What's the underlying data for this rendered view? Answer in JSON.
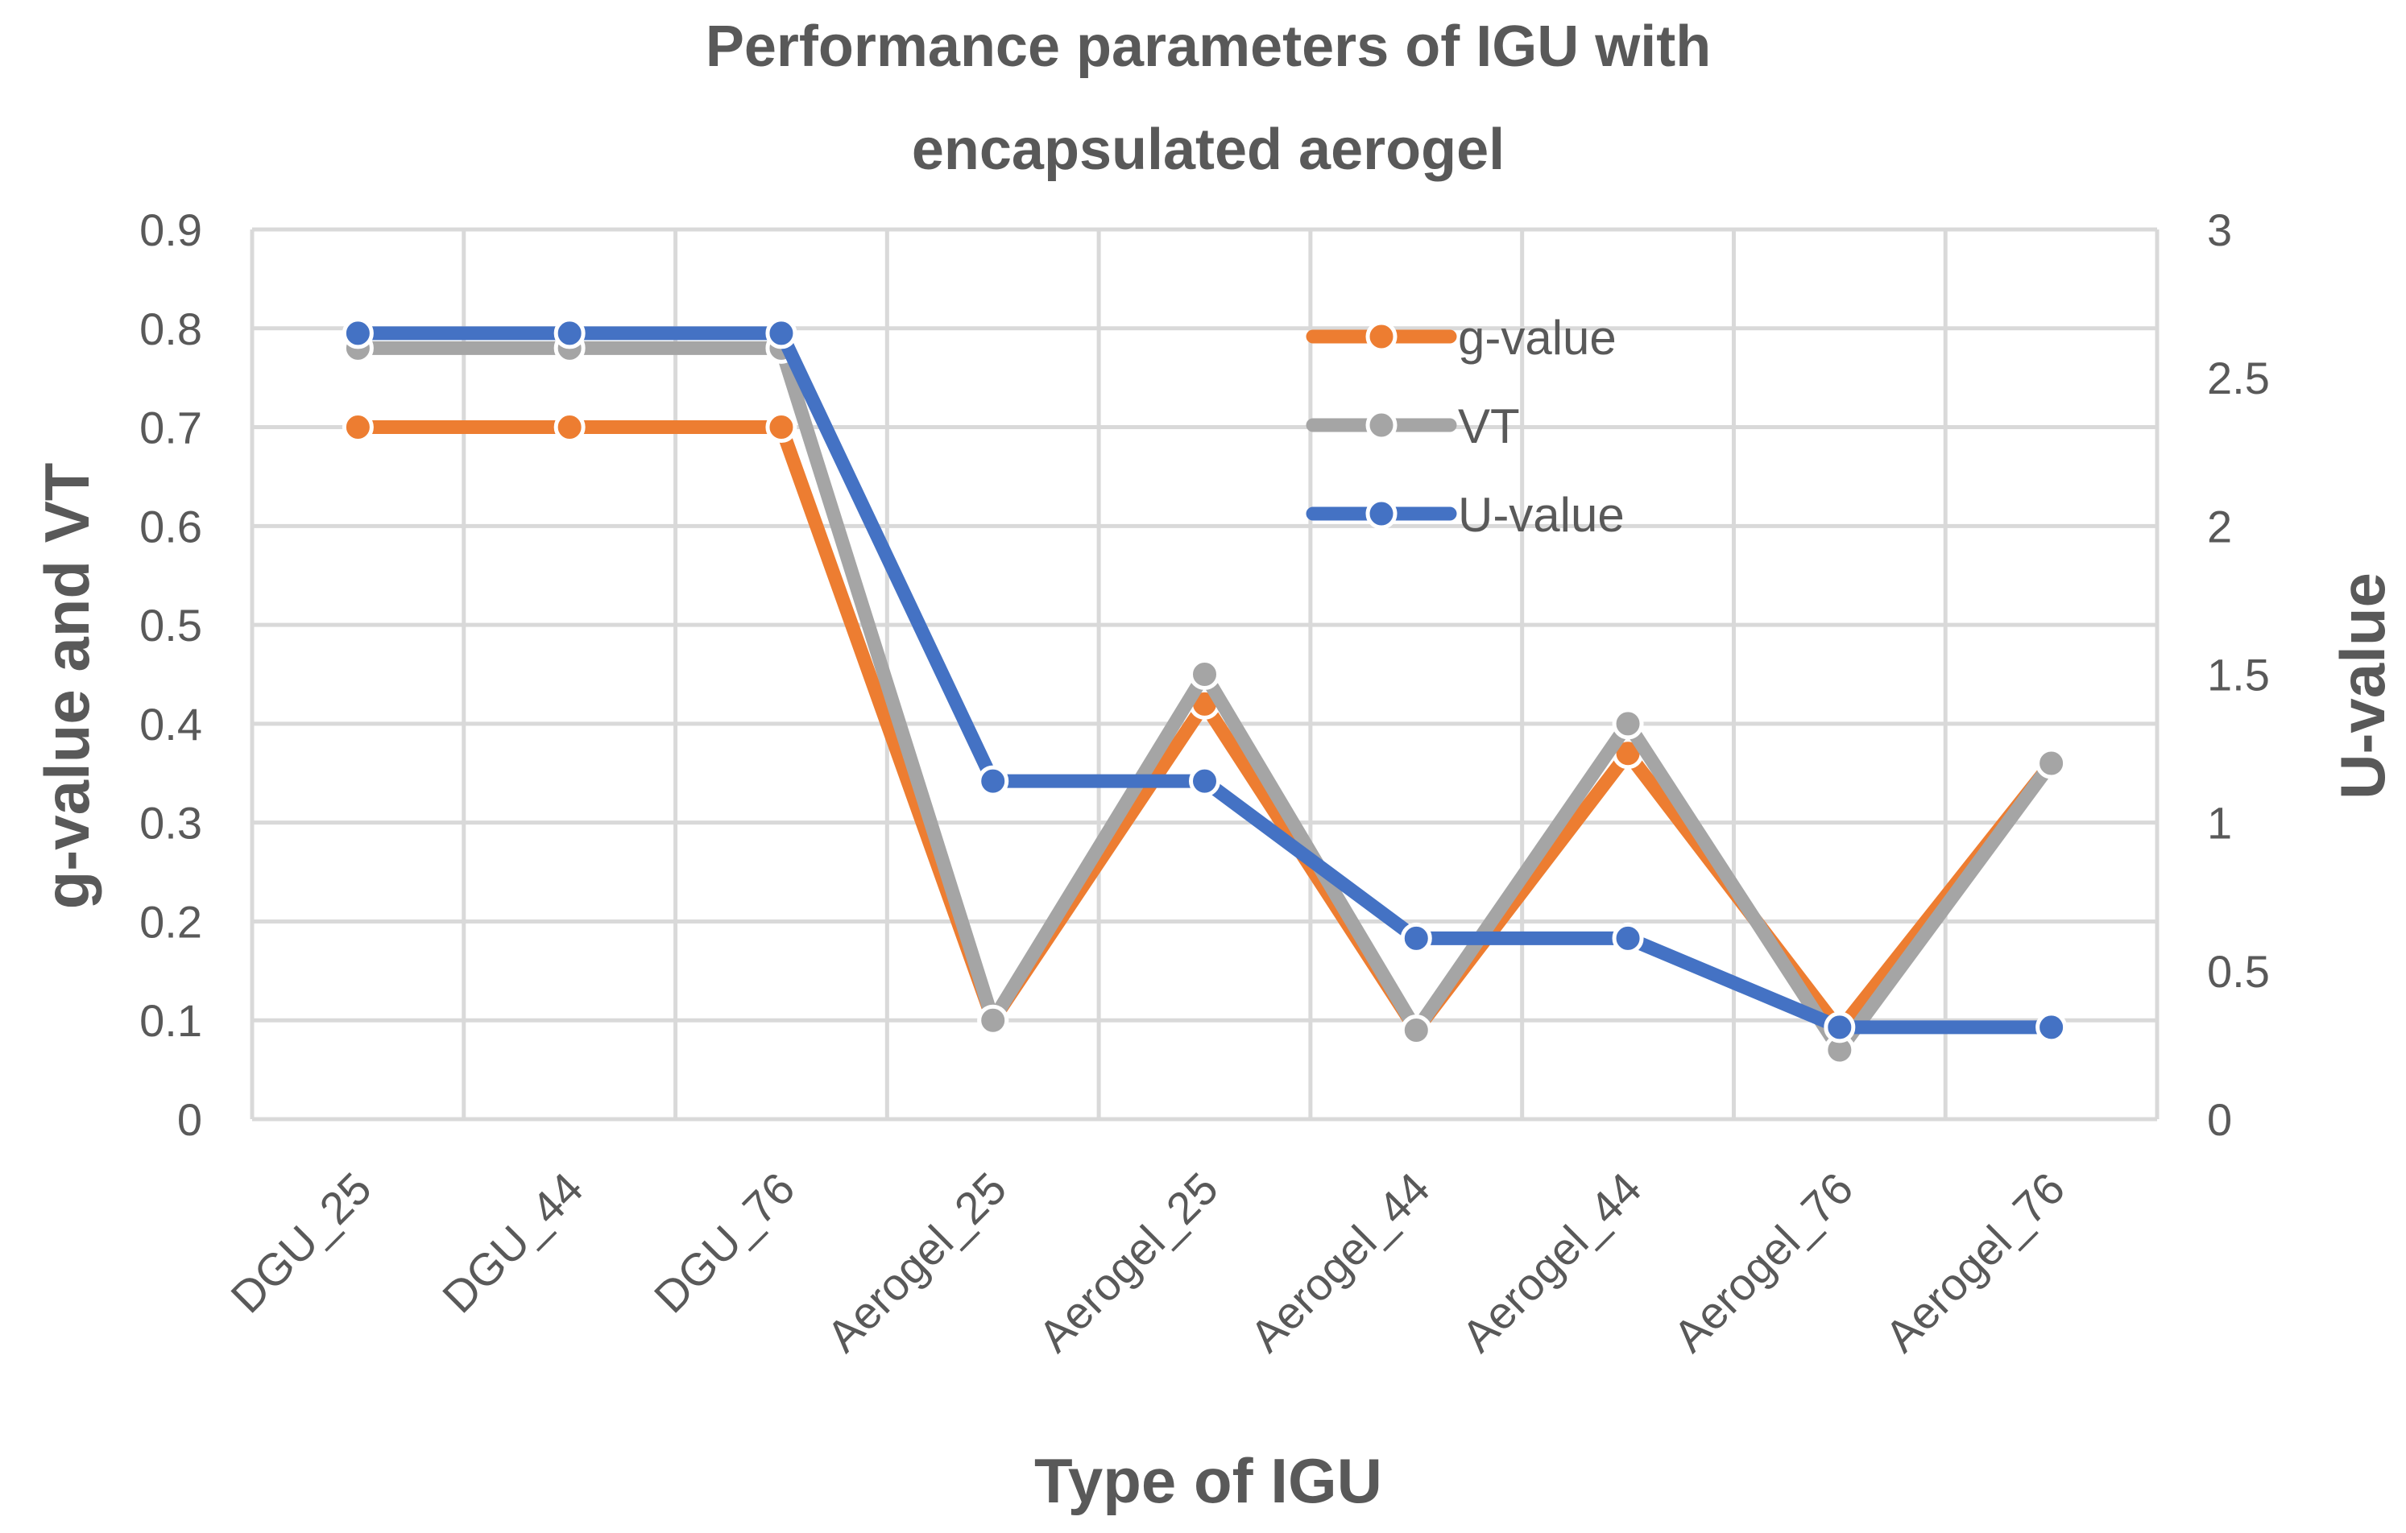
{
  "chart_data": {
    "type": "line",
    "title_lines": [
      "Performance parameters of IGU with",
      "encapsulated aerogel"
    ],
    "xlabel": "Type of IGU",
    "ylabel": "g-value and VT",
    "y2label": "U-value",
    "categories": [
      "DGU_25",
      "DGU_44",
      "DGU_76",
      "Aerogel_25",
      "Aerogel_25",
      "Aerogel_44",
      "Aerogel_44",
      "Aerogel_76",
      "Aerogel_76"
    ],
    "ylim": [
      0,
      0.9
    ],
    "y2lim": [
      0,
      3
    ],
    "yticks": [
      "0",
      "0.1",
      "0.2",
      "0.3",
      "0.4",
      "0.5",
      "0.6",
      "0.7",
      "0.8",
      "0.9"
    ],
    "y2ticks": [
      "0",
      "0.5",
      "1",
      "1.5",
      "2",
      "2.5",
      "3"
    ],
    "grid": true,
    "legend_position": "top-right-inside",
    "series": [
      {
        "name": "g-value",
        "axis": "left",
        "color": "#ED7D31",
        "values": [
          0.7,
          0.7,
          0.7,
          0.1,
          0.42,
          0.09,
          0.37,
          0.09,
          0.36
        ]
      },
      {
        "name": "VT",
        "axis": "left",
        "color": "#A5A5A5",
        "values": [
          0.78,
          0.78,
          0.78,
          0.1,
          0.45,
          0.09,
          0.4,
          0.07,
          0.36
        ]
      },
      {
        "name": "U-value",
        "axis": "right",
        "color": "#4472C4",
        "values": [
          2.65,
          2.65,
          2.65,
          1.14,
          1.14,
          0.61,
          0.61,
          0.31,
          0.31
        ]
      }
    ]
  }
}
